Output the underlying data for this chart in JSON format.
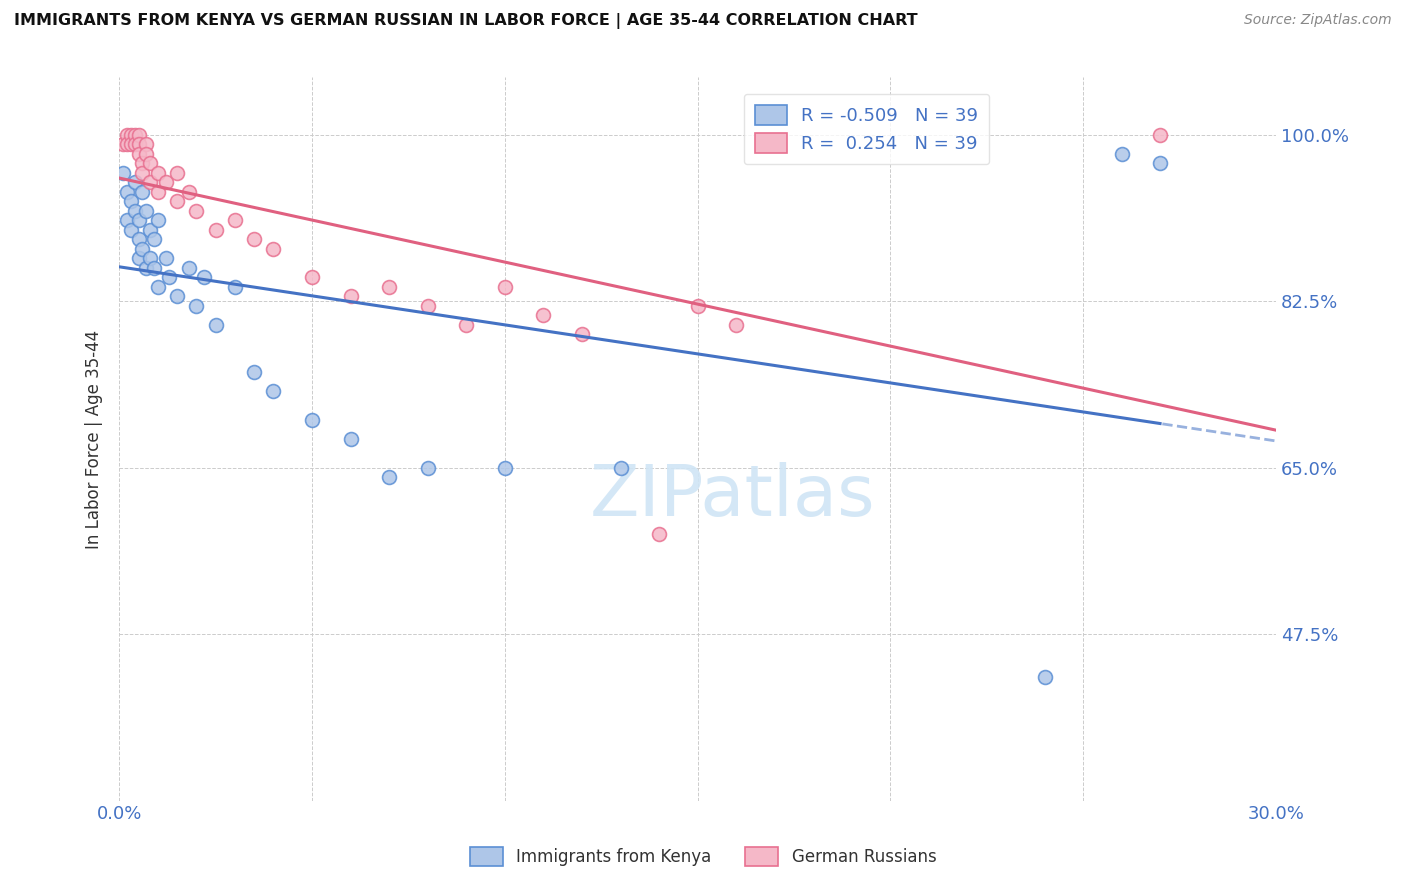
{
  "title": "IMMIGRANTS FROM KENYA VS GERMAN RUSSIAN IN LABOR FORCE | AGE 35-44 CORRELATION CHART",
  "source": "Source: ZipAtlas.com",
  "ylabel": "In Labor Force | Age 35-44",
  "xlim": [
    0.0,
    0.3
  ],
  "ylim": [
    0.3,
    1.06
  ],
  "ytick_labels": [
    "100.0%",
    "82.5%",
    "65.0%",
    "47.5%"
  ],
  "ytick_values": [
    1.0,
    0.825,
    0.65,
    0.475
  ],
  "xtick_vals": [
    0.0,
    0.05,
    0.1,
    0.15,
    0.2,
    0.25,
    0.3
  ],
  "legend_r_kenya": "-0.509",
  "legend_n_kenya": "39",
  "legend_r_german": " 0.254",
  "legend_n_german": "39",
  "kenya_face_color": "#aec6e8",
  "german_face_color": "#f5b8c8",
  "kenya_edge_color": "#5b8fd4",
  "german_edge_color": "#e87090",
  "kenya_line_color": "#4472c4",
  "german_line_color": "#e06080",
  "watermark_color": "#d0e5f5",
  "kenya_scatter_x": [
    0.001,
    0.002,
    0.002,
    0.003,
    0.003,
    0.004,
    0.004,
    0.005,
    0.005,
    0.005,
    0.006,
    0.006,
    0.007,
    0.007,
    0.008,
    0.008,
    0.009,
    0.009,
    0.01,
    0.01,
    0.012,
    0.013,
    0.015,
    0.018,
    0.02,
    0.022,
    0.025,
    0.03,
    0.035,
    0.04,
    0.05,
    0.06,
    0.07,
    0.08,
    0.1,
    0.13,
    0.24,
    0.26,
    0.27
  ],
  "kenya_scatter_y": [
    0.96,
    0.94,
    0.91,
    0.93,
    0.9,
    0.95,
    0.92,
    0.91,
    0.89,
    0.87,
    0.94,
    0.88,
    0.92,
    0.86,
    0.9,
    0.87,
    0.89,
    0.86,
    0.91,
    0.84,
    0.87,
    0.85,
    0.83,
    0.86,
    0.82,
    0.85,
    0.8,
    0.84,
    0.75,
    0.73,
    0.7,
    0.68,
    0.64,
    0.65,
    0.65,
    0.65,
    0.43,
    0.98,
    0.97
  ],
  "german_scatter_x": [
    0.001,
    0.002,
    0.002,
    0.003,
    0.003,
    0.004,
    0.004,
    0.005,
    0.005,
    0.005,
    0.006,
    0.006,
    0.007,
    0.007,
    0.008,
    0.008,
    0.01,
    0.01,
    0.012,
    0.015,
    0.015,
    0.018,
    0.02,
    0.025,
    0.03,
    0.035,
    0.04,
    0.05,
    0.06,
    0.07,
    0.08,
    0.09,
    0.1,
    0.11,
    0.12,
    0.14,
    0.15,
    0.16,
    0.27
  ],
  "german_scatter_y": [
    0.99,
    1.0,
    0.99,
    1.0,
    0.99,
    1.0,
    0.99,
    1.0,
    0.99,
    0.98,
    0.97,
    0.96,
    0.99,
    0.98,
    0.97,
    0.95,
    0.96,
    0.94,
    0.95,
    0.96,
    0.93,
    0.94,
    0.92,
    0.9,
    0.91,
    0.89,
    0.88,
    0.85,
    0.83,
    0.84,
    0.82,
    0.8,
    0.84,
    0.81,
    0.79,
    0.58,
    0.82,
    0.8,
    1.0
  ]
}
